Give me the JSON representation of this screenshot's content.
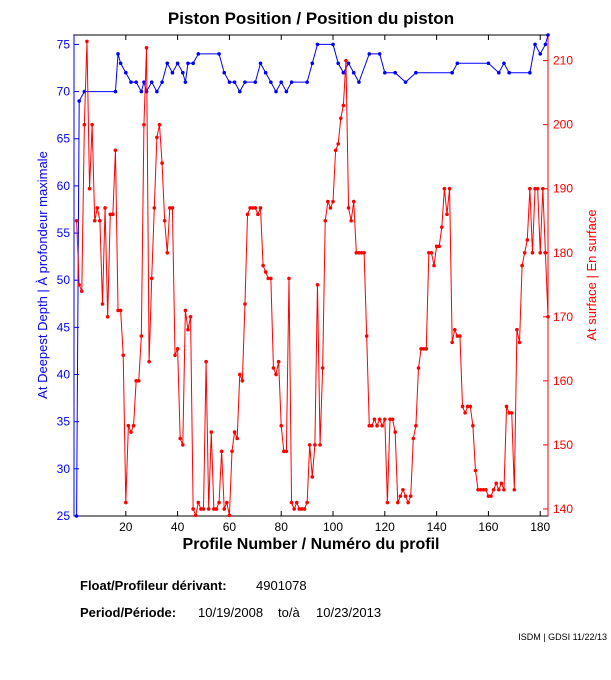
{
  "chart_data": {
    "type": "line",
    "title": "Piston Position / Position du piston",
    "xlabel": "Profile Number / Numéro du profil",
    "ylabel": "At Deepest Depth | À profondeur maximale",
    "y2label": "At surface | En surface",
    "xlim": [
      0,
      183
    ],
    "xticks": [
      20,
      40,
      60,
      80,
      100,
      120,
      140,
      160,
      180
    ],
    "ylim": [
      25,
      76
    ],
    "yticks": [
      25,
      30,
      35,
      40,
      45,
      50,
      55,
      60,
      65,
      70,
      75
    ],
    "y2lim": [
      138.9,
      214
    ],
    "y2ticks": [
      140,
      150,
      160,
      170,
      180,
      190,
      200,
      210
    ],
    "series": [
      {
        "color": "#0000ff",
        "axis": "y",
        "x": [
          1,
          2,
          4,
          16,
          17,
          18,
          20,
          22,
          24,
          26,
          27,
          28,
          30,
          32,
          34,
          36,
          38,
          40,
          42,
          43,
          44,
          46,
          48,
          56,
          58,
          60,
          62,
          64,
          66,
          70,
          72,
          74,
          76,
          78,
          80,
          82,
          84,
          90,
          92,
          94,
          100,
          102,
          104,
          106,
          108,
          110,
          114,
          118,
          120,
          124,
          128,
          132,
          146,
          148,
          160,
          164,
          166,
          168,
          176,
          178,
          180,
          182,
          183
        ],
        "values": [
          25,
          69,
          70,
          70,
          74,
          73,
          72,
          71,
          71,
          70,
          71,
          70,
          71,
          70,
          71,
          73,
          72,
          73,
          72,
          71,
          73,
          73,
          74,
          74,
          72,
          71,
          71,
          70,
          71,
          71,
          73,
          72,
          71,
          70,
          71,
          70,
          71,
          71,
          73,
          75,
          75,
          73,
          72,
          73,
          72,
          71,
          74,
          74,
          72,
          72,
          71,
          72,
          72,
          73,
          73,
          72,
          73,
          72,
          72,
          75,
          74,
          75,
          76
        ]
      },
      {
        "color": "#ff0000",
        "axis": "y2",
        "x": [
          1,
          2,
          3,
          4,
          5,
          6,
          7,
          8,
          9,
          10,
          11,
          12,
          13,
          14,
          15,
          16,
          17,
          18,
          19,
          20,
          21,
          22,
          23,
          24,
          25,
          26,
          27,
          28,
          29,
          30,
          31,
          32,
          33,
          34,
          35,
          36,
          37,
          38,
          39,
          40,
          41,
          42,
          43,
          44,
          45,
          46,
          47,
          48,
          49,
          50,
          51,
          52,
          53,
          54,
          55,
          56,
          57,
          58,
          59,
          60,
          61,
          62,
          63,
          64,
          65,
          66,
          67,
          68,
          69,
          70,
          71,
          72,
          73,
          74,
          75,
          76,
          77,
          78,
          79,
          80,
          81,
          82,
          83,
          84,
          85,
          86,
          87,
          88,
          89,
          90,
          91,
          92,
          93,
          94,
          95,
          96,
          97,
          98,
          99,
          100,
          101,
          102,
          103,
          104,
          105,
          106,
          107,
          108,
          109,
          110,
          111,
          112,
          113,
          114,
          115,
          116,
          117,
          118,
          119,
          120,
          121,
          122,
          123,
          124,
          125,
          126,
          127,
          128,
          129,
          130,
          131,
          132,
          133,
          134,
          135,
          136,
          137,
          138,
          139,
          140,
          141,
          142,
          143,
          144,
          145,
          146,
          147,
          148,
          149,
          150,
          151,
          152,
          153,
          154,
          155,
          156,
          157,
          158,
          159,
          160,
          161,
          162,
          163,
          164,
          165,
          166,
          167,
          168,
          169,
          170,
          171,
          172,
          173,
          174,
          175,
          176,
          177,
          178,
          179,
          180,
          181,
          182,
          183
        ],
        "values": [
          185,
          175,
          174,
          200,
          213,
          190,
          200,
          185,
          187,
          185,
          172,
          187,
          170,
          186,
          186,
          196,
          171,
          171,
          164,
          141,
          153,
          152,
          153,
          160,
          160,
          167,
          200,
          212,
          163,
          176,
          187,
          198,
          200,
          194,
          185,
          180,
          187,
          187,
          164,
          165,
          151,
          150,
          171,
          168,
          170,
          140,
          139,
          141,
          140,
          140,
          163,
          140,
          152,
          140,
          140,
          141,
          149,
          140,
          141,
          139,
          149,
          152,
          151,
          161,
          160,
          172,
          186,
          187,
          187,
          187,
          186,
          187,
          178,
          177,
          176,
          176,
          162,
          161,
          163,
          153,
          149,
          149,
          176,
          141,
          140,
          141,
          140,
          140,
          140,
          141,
          150,
          145,
          150,
          175,
          150,
          162,
          185,
          188,
          187,
          188,
          196,
          197,
          201,
          203,
          210,
          187,
          185,
          188,
          180,
          180,
          180,
          180,
          167,
          153,
          153,
          154,
          153,
          154,
          153,
          154,
          141,
          154,
          154,
          152,
          141,
          142,
          143,
          142,
          141,
          142,
          151,
          153,
          162,
          165,
          165,
          165,
          180,
          180,
          178,
          181,
          181,
          184,
          190,
          186,
          190,
          166,
          168,
          167,
          167,
          156,
          155,
          156,
          156,
          153,
          146,
          143,
          143,
          143,
          143,
          142,
          142,
          143,
          144,
          143,
          144,
          143,
          156,
          155,
          155,
          143,
          168,
          166,
          178,
          180,
          182,
          190,
          180,
          190,
          190,
          180,
          190,
          180,
          170
        ]
      }
    ],
    "info": {
      "float_label": "Float/Profileur dérivant:",
      "float": "4901078",
      "period_label": "Period/Période:",
      "start": "10/19/2008",
      "to": "to/à",
      "end": "10/23/2013"
    },
    "footer": "ISDM | GDSI 11/22/13"
  }
}
